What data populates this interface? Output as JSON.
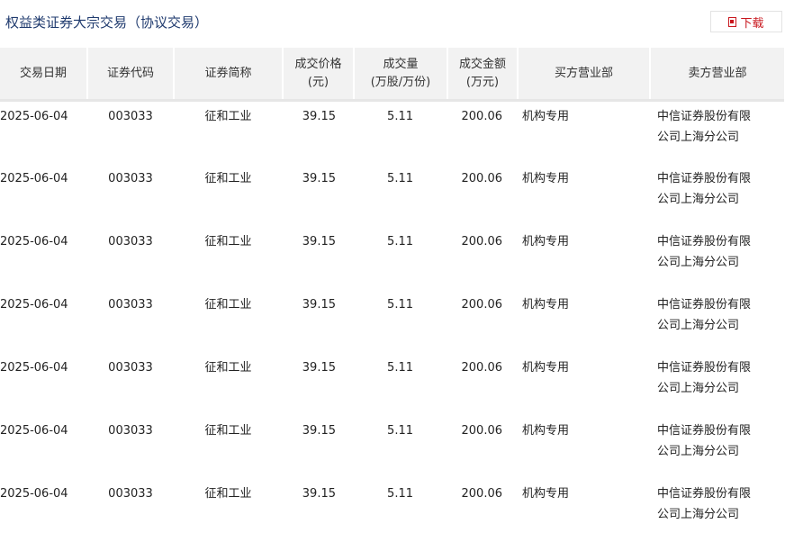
{
  "page": {
    "title": "权益类证券大宗交易（协议交易）",
    "download_label": "下载",
    "download_icon": "pdf-icon"
  },
  "table": {
    "headers": [
      [
        "交易日期"
      ],
      [
        "证券代码"
      ],
      [
        "证券简称"
      ],
      [
        "成交价格",
        "(元)"
      ],
      [
        "成交量",
        "(万股/万份)"
      ],
      [
        "成交金额",
        "(万元)"
      ],
      [
        "买方营业部"
      ],
      [
        "卖方营业部"
      ]
    ],
    "rows": [
      [
        "2025-06-04",
        "003033",
        "征和工业",
        "39.15",
        "5.11",
        "200.06",
        "机构专用",
        "中信证券股份有限",
        "公司上海分公司"
      ],
      [
        "2025-06-04",
        "003033",
        "征和工业",
        "39.15",
        "5.11",
        "200.06",
        "机构专用",
        "中信证券股份有限",
        "公司上海分公司"
      ],
      [
        "2025-06-04",
        "003033",
        "征和工业",
        "39.15",
        "5.11",
        "200.06",
        "机构专用",
        "中信证券股份有限",
        "公司上海分公司"
      ],
      [
        "2025-06-04",
        "003033",
        "征和工业",
        "39.15",
        "5.11",
        "200.06",
        "机构专用",
        "中信证券股份有限",
        "公司上海分公司"
      ],
      [
        "2025-06-04",
        "003033",
        "征和工业",
        "39.15",
        "5.11",
        "200.06",
        "机构专用",
        "中信证券股份有限",
        "公司上海分公司"
      ],
      [
        "2025-06-04",
        "003033",
        "征和工业",
        "39.15",
        "5.11",
        "200.06",
        "机构专用",
        "中信证券股份有限",
        "公司上海分公司"
      ],
      [
        "2025-06-04",
        "003033",
        "征和工业",
        "39.15",
        "5.11",
        "200.06",
        "机构专用",
        "中信证券股份有限",
        "公司上海分公司"
      ]
    ]
  }
}
